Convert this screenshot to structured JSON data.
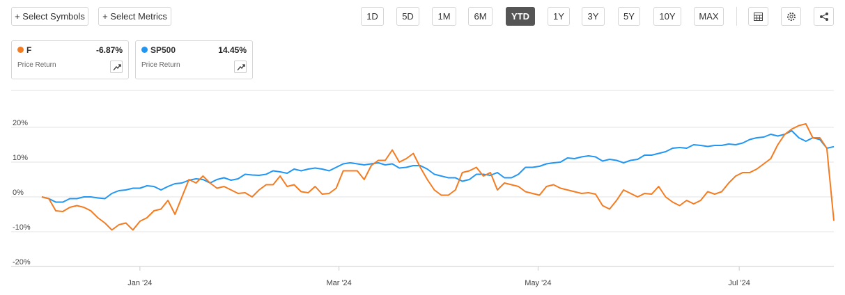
{
  "toolbar": {
    "buttons": [
      "+ Select Symbols",
      "+ Select Metrics"
    ],
    "ranges": [
      "1D",
      "5D",
      "1M",
      "6M",
      "YTD",
      "1Y",
      "3Y",
      "5Y",
      "10Y",
      "MAX"
    ],
    "active_range": "YTD"
  },
  "legend_cards": [
    {
      "return": "-6.87%",
      "metric": "Price Return"
    },
    {
      "return": "14.45%",
      "metric": "Price Return"
    }
  ],
  "chart_data": {
    "type": "line",
    "grid": true,
    "ylim": [
      -20,
      30
    ],
    "yticks": [
      {
        "value": -20,
        "label": "-20%"
      },
      {
        "value": -10,
        "label": "-10%"
      },
      {
        "value": 0,
        "label": "0%"
      },
      {
        "value": 10,
        "label": "10%"
      },
      {
        "value": 20,
        "label": "20%"
      }
    ],
    "xlim": [
      0,
      113
    ],
    "xticks": [
      {
        "value": 14,
        "label": "Jan '24"
      },
      {
        "value": 42.4,
        "label": "Mar '24"
      },
      {
        "value": 70.8,
        "label": "May '24"
      },
      {
        "value": 99.5,
        "label": "Jul '24"
      }
    ],
    "series": [
      {
        "name": "F",
        "color": "#f47b20",
        "values": [
          0,
          -0.5,
          -4,
          -4.2,
          -3,
          -2.5,
          -3,
          -4,
          -6,
          -7.5,
          -9.5,
          -8,
          -7.5,
          -9.5,
          -7,
          -6,
          -4,
          -3.5,
          -1,
          -5,
          0,
          5,
          4,
          6,
          4,
          2.5,
          3,
          2,
          1,
          1.2,
          0,
          2,
          3.5,
          3.5,
          6,
          3,
          3.5,
          1.5,
          1.2,
          3,
          0.8,
          1,
          2.5,
          7.5,
          7.5,
          7.5,
          5,
          9,
          10.5,
          10.5,
          13.5,
          10,
          11,
          12.5,
          8.5,
          5,
          2,
          0.5,
          0.5,
          2,
          7,
          7.5,
          8.5,
          6,
          7,
          2,
          4,
          3.5,
          3,
          1.5,
          1,
          0.5,
          3,
          3.5,
          2.5,
          2,
          1.5,
          1,
          1.2,
          0.8,
          -2.5,
          -3.5,
          -1,
          2,
          1,
          0,
          1,
          0.8,
          3,
          0,
          -1.5,
          -2.5,
          -1,
          -2,
          -1,
          1.5,
          0.8,
          1.5,
          4,
          6,
          7,
          7,
          8,
          9.5,
          11,
          15,
          18,
          19.5,
          20.5,
          21,
          17,
          17,
          14,
          -6.87
        ]
      },
      {
        "name": "SP500",
        "color": "#2196f3",
        "values": [
          0,
          -0.5,
          -1.5,
          -1.5,
          -0.5,
          -0.5,
          0,
          0,
          -0.3,
          -0.5,
          1,
          1.8,
          2,
          2.5,
          2.5,
          3.2,
          3,
          2,
          3,
          3.8,
          4,
          4.8,
          5.2,
          5,
          4,
          5,
          5.5,
          4.8,
          5.2,
          6.5,
          6.3,
          6.2,
          6.5,
          7.5,
          7.2,
          6.8,
          8,
          7.5,
          8,
          8.3,
          8,
          7.5,
          8.5,
          9.5,
          9.8,
          9.5,
          9.2,
          9.5,
          9.8,
          9.2,
          9.5,
          8.3,
          8.5,
          9,
          9,
          8,
          6.5,
          6,
          5.5,
          5.5,
          4.5,
          5,
          6.5,
          6.5,
          6.2,
          7,
          5.5,
          5.5,
          6.5,
          8.5,
          8.5,
          8.8,
          9.5,
          9.8,
          10,
          11.2,
          11,
          11.5,
          11.8,
          11.5,
          10.3,
          10.8,
          10.5,
          9.8,
          10.5,
          10.8,
          12,
          12,
          12.5,
          13,
          14,
          14.2,
          14,
          15,
          14.8,
          14.5,
          14.8,
          14.8,
          15.2,
          15,
          15.5,
          16.5,
          17,
          17.2,
          18,
          17.5,
          18,
          19,
          17,
          16,
          17,
          16.5,
          14,
          14.45
        ]
      }
    ]
  }
}
